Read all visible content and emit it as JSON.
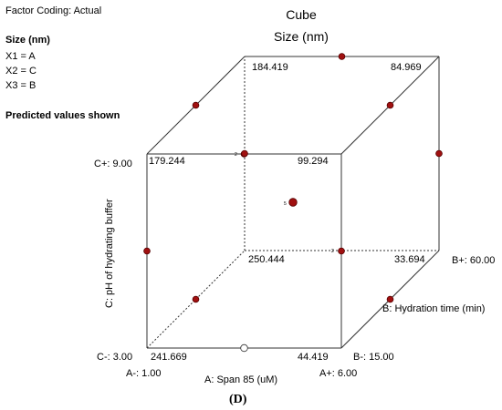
{
  "header": {
    "factor_coding": "Factor Coding: Actual",
    "response_label": "Size (nm)",
    "mappings": [
      "X1 = A",
      "X2 = C",
      "X3 = B"
    ],
    "note": "Predicted values shown"
  },
  "chart_data": {
    "type": "cube",
    "title": "Cube",
    "subtitle": "Size (nm)",
    "axes": {
      "A": {
        "label": "A: Span 85 (uM)",
        "low": "A-: 1.00",
        "high": "A+: 6.00"
      },
      "B": {
        "label": "B: Hydration time (min)",
        "low": "B-: 15.00",
        "high": "B+: 60.00"
      },
      "C": {
        "label": "C: pH of hydrating buffer",
        "low": "C-: 3.00",
        "high": "C+: 9.00"
      }
    },
    "corners": [
      {
        "A": "-",
        "B": "-",
        "C": "-",
        "value": "241.669"
      },
      {
        "A": "+",
        "B": "-",
        "C": "-",
        "value": "44.419"
      },
      {
        "A": "-",
        "B": "+",
        "C": "-",
        "value": "250.444"
      },
      {
        "A": "+",
        "B": "+",
        "C": "-",
        "value": "33.694"
      },
      {
        "A": "-",
        "B": "-",
        "C": "+",
        "value": "179.244"
      },
      {
        "A": "+",
        "B": "-",
        "C": "+",
        "value": "99.294"
      },
      {
        "A": "-",
        "B": "+",
        "C": "+",
        "value": "184.419"
      },
      {
        "A": "+",
        "B": "+",
        "C": "+",
        "value": "84.969"
      }
    ],
    "design_point_counts": {
      "center": "5",
      "face_bc": "2",
      "face_ac": "2"
    },
    "colors": {
      "point": "#a01010",
      "edge": "#333333"
    }
  },
  "caption": "(D)"
}
